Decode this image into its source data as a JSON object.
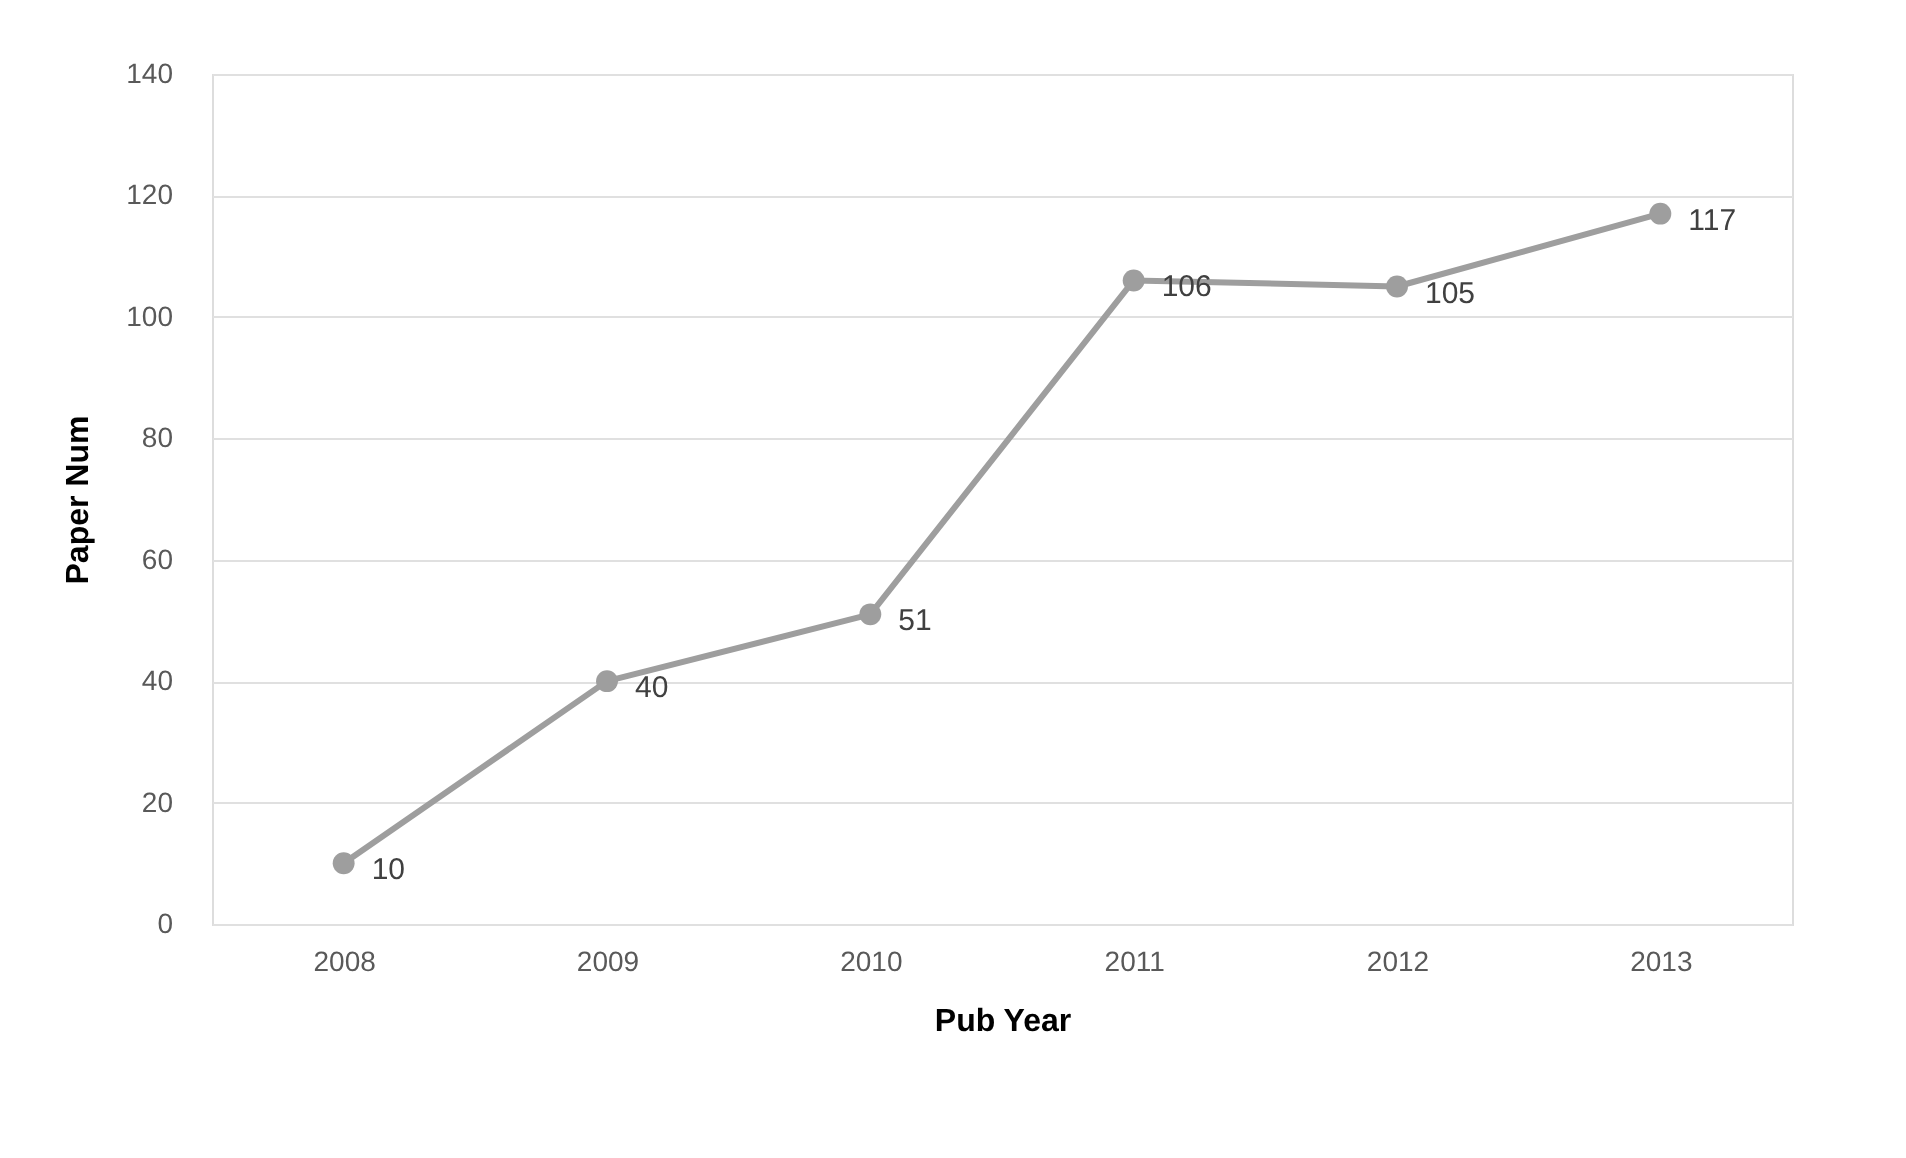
{
  "chart_data": {
    "type": "line",
    "xlabel": "Pub Year",
    "ylabel": "Paper Num",
    "categories": [
      "2008",
      "2009",
      "2010",
      "2011",
      "2012",
      "2013"
    ],
    "values": [
      10,
      40,
      51,
      106,
      105,
      117
    ],
    "color": "#9e9e9e",
    "ylim": [
      0,
      140
    ],
    "yticks": [
      0,
      20,
      40,
      60,
      80,
      100,
      120,
      140
    ],
    "grid": "y",
    "marker": "circle",
    "line_style": "solid",
    "data_labels": true
  }
}
